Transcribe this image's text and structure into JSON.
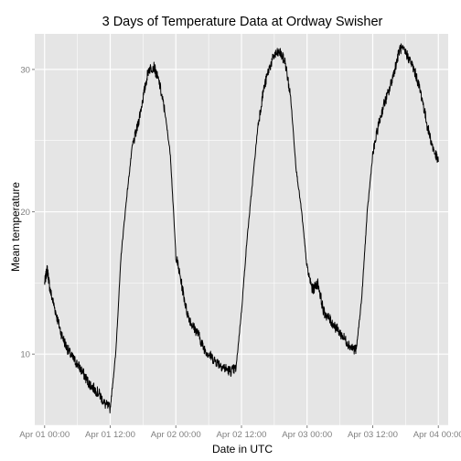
{
  "chart_data": {
    "type": "line",
    "title": "3 Days of Temperature Data at Ordway Swisher",
    "xlabel": "Date in UTC",
    "ylabel": "Mean temperature",
    "x_ticks": [
      "Apr 01 00:00",
      "Apr 01 12:00",
      "Apr 02 00:00",
      "Apr 02 12:00",
      "Apr 03 00:00",
      "Apr 03 12:00",
      "Apr 04 00:00"
    ],
    "y_ticks": [
      10,
      20,
      30
    ],
    "xlim": [
      "Apr 01 00:00",
      "Apr 04 00:00"
    ],
    "ylim": [
      5.0,
      32.5
    ],
    "grid": true,
    "background": "#e5e5e5",
    "grid_color": "#ffffff",
    "line_color": "#000000",
    "series": [
      {
        "x_hours_from_apr01": [
          0,
          0.5,
          1,
          2,
          3,
          4,
          5,
          6,
          7,
          8,
          9,
          10,
          11,
          12,
          13,
          14,
          15,
          16,
          17,
          18,
          19,
          20,
          21,
          22,
          23,
          24,
          25,
          26,
          27,
          28,
          29,
          30,
          31,
          32,
          33,
          34,
          35,
          36,
          37,
          38,
          39,
          40,
          41,
          42,
          43,
          44,
          45,
          46,
          47,
          48,
          49,
          50,
          51,
          52,
          53,
          54,
          55,
          56,
          57,
          58,
          59,
          60,
          61,
          62,
          63,
          64,
          65,
          66,
          67,
          68,
          69,
          70,
          71,
          72
        ],
        "values": [
          15.0,
          16.0,
          14.5,
          13.0,
          11.5,
          10.5,
          9.8,
          9.3,
          8.7,
          8.0,
          7.6,
          7.2,
          6.5,
          6.2,
          10.0,
          17.0,
          21.0,
          24.5,
          26.0,
          28.0,
          30.0,
          30.2,
          29.0,
          27.0,
          24.0,
          17.0,
          15.0,
          13.0,
          12.0,
          11.5,
          10.5,
          10.0,
          9.6,
          9.3,
          9.0,
          8.8,
          9.0,
          13.0,
          18.0,
          22.0,
          26.0,
          28.5,
          30.0,
          31.0,
          31.2,
          30.5,
          28.0,
          23.0,
          20.0,
          16.0,
          14.5,
          15.0,
          13.0,
          12.5,
          12.0,
          11.5,
          11.0,
          10.5,
          10.3,
          14.0,
          20.0,
          24.0,
          26.0,
          27.5,
          28.5,
          30.0,
          31.5,
          31.2,
          30.5,
          29.5,
          28.0,
          26.0,
          24.5,
          23.5
        ]
      }
    ]
  }
}
